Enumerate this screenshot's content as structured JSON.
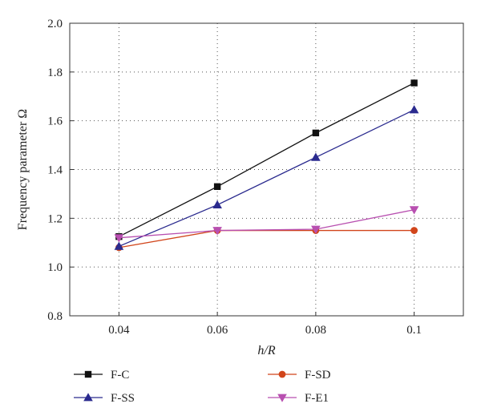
{
  "chart_data": {
    "type": "line",
    "title": "",
    "xlabel": "h/R",
    "ylabel": "Frequency parameter Ω",
    "x": [
      0.04,
      0.06,
      0.08,
      0.1
    ],
    "x_tick_labels": [
      "0.04",
      "0.06",
      "0.08",
      "0.1"
    ],
    "xlim": [
      0.03,
      0.11
    ],
    "ylim": [
      0.8,
      2.0
    ],
    "y_ticks": [
      0.8,
      1.0,
      1.2,
      1.4,
      1.6,
      1.8,
      2.0
    ],
    "y_tick_labels": [
      "0.8",
      "1.0",
      "1.2",
      "1.4",
      "1.6",
      "1.8",
      "2.0"
    ],
    "grid": true,
    "legend_position": "bottom",
    "series": [
      {
        "name": "F-C",
        "values": [
          1.125,
          1.33,
          1.55,
          1.755
        ],
        "color": "#111111",
        "marker": "square"
      },
      {
        "name": "F-SD",
        "values": [
          1.08,
          1.15,
          1.15,
          1.15
        ],
        "color": "#d1451b",
        "marker": "circle"
      },
      {
        "name": "F-SS",
        "values": [
          1.085,
          1.255,
          1.45,
          1.645
        ],
        "color": "#2a2a8e",
        "marker": "triangle-up"
      },
      {
        "name": "F-E1",
        "values": [
          1.12,
          1.15,
          1.155,
          1.235
        ],
        "color": "#b84fb0",
        "marker": "triangle-down"
      }
    ]
  }
}
